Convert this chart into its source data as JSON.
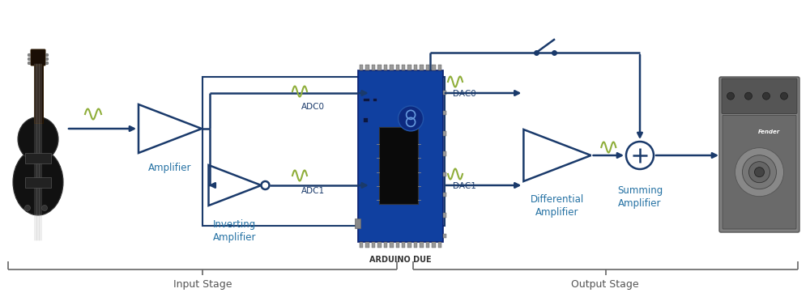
{
  "bg_color": "#ffffff",
  "arrow_color": "#1a3a6b",
  "signal_color": "#8fae3a",
  "text_color_blue": "#2471a3",
  "text_color_dark": "#1a3a6b",
  "label_color": "#666666",
  "title_arduino": "ARDUINO DUE",
  "label_amplifier": "Amplifier",
  "label_inverting": "Inverting\nAmplifier",
  "label_differential": "Differential\nAmplifier",
  "label_summing": "Summing\nAmplifier",
  "label_adc0": "ADC0",
  "label_adc1": "ADC1",
  "label_dac0": "DAC0",
  "label_dac1": "DAC1",
  "label_input_stage": "Input Stage",
  "label_output_stage": "Output Stage",
  "guitar_body_color": "#1a1a1a",
  "guitar_neck_color": "#2a1a0a",
  "arduino_main_color": "#0d3080",
  "arduino_chip_color": "#111111",
  "speaker_body_color": "#7a7a7a",
  "speaker_cone_color": "#999999"
}
